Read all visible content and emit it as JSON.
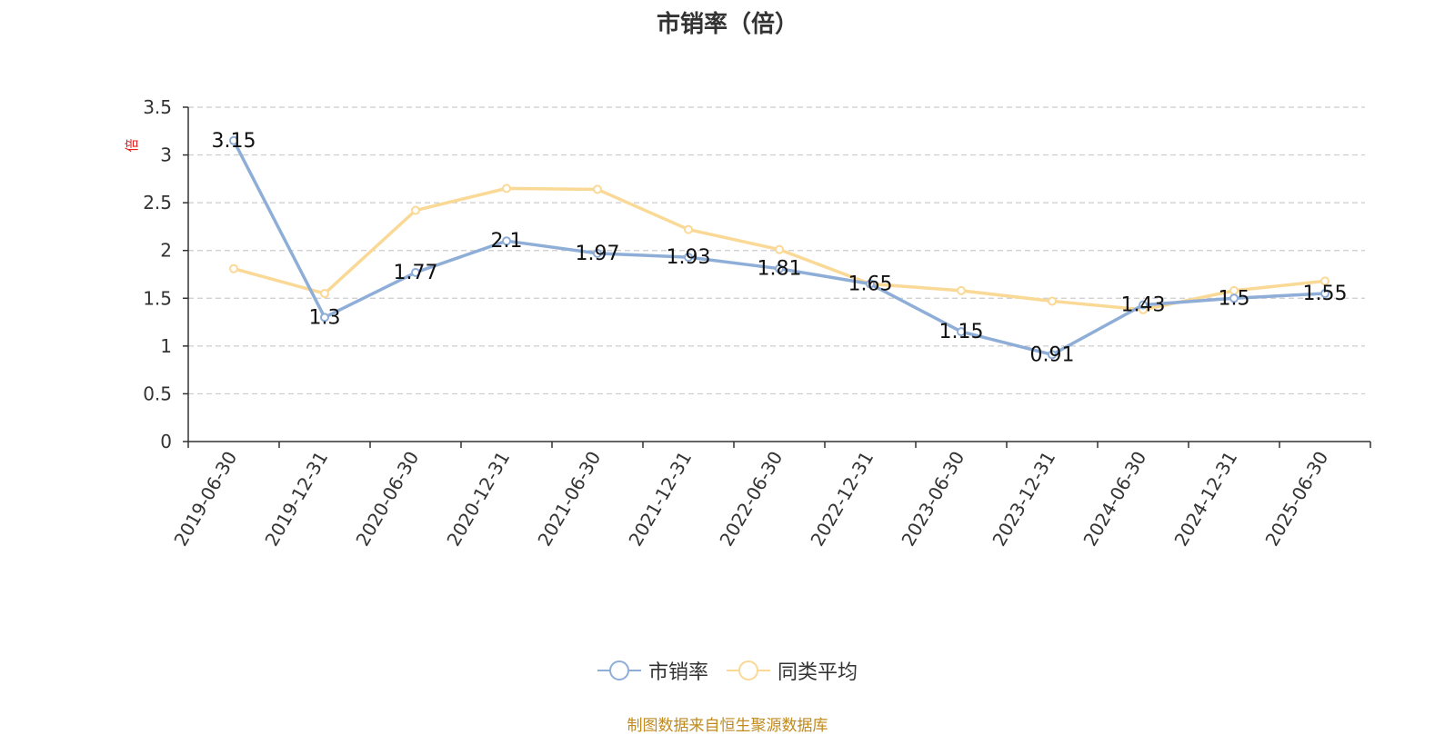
{
  "chart_data": {
    "type": "line",
    "title": "市销率（倍）",
    "ylabel": "倍",
    "categories": [
      "2019-06-30",
      "2019-12-31",
      "2020-06-30",
      "2020-12-31",
      "2021-06-30",
      "2021-12-31",
      "2022-06-30",
      "2022-12-31",
      "2023-06-30",
      "2023-12-31",
      "2024-06-30",
      "2024-12-31",
      "2025-06-30"
    ],
    "yticks": [
      "0",
      "0.5",
      "1",
      "1.5",
      "2",
      "2.5",
      "3",
      "3.5"
    ],
    "ylim": [
      0,
      3.5
    ],
    "grid": true,
    "legend_position": "bottom-center",
    "series": [
      {
        "name": "市销率",
        "color": "#8eaed8",
        "values": [
          3.15,
          1.3,
          1.77,
          2.1,
          1.97,
          1.93,
          1.81,
          1.65,
          1.15,
          0.91,
          1.43,
          1.5,
          1.55
        ],
        "labels": [
          "3.15",
          "1.3",
          "1.77",
          "2.1",
          "1.97",
          "1.93",
          "1.81",
          "1.65",
          "1.15",
          "0.91",
          "1.43",
          "1.5",
          "1.55"
        ]
      },
      {
        "name": "同类平均",
        "color": "#fad996",
        "values": [
          1.81,
          1.55,
          2.42,
          2.65,
          2.64,
          2.22,
          2.01,
          1.65,
          1.58,
          1.47,
          1.38,
          1.58,
          1.68
        ]
      }
    ]
  },
  "source_note": "制图数据来自恒生聚源数据库",
  "colors": {
    "source_note": "#c08a1e",
    "ylabel": "#e02020",
    "axis": "#333333",
    "grid": "#cccccc"
  }
}
